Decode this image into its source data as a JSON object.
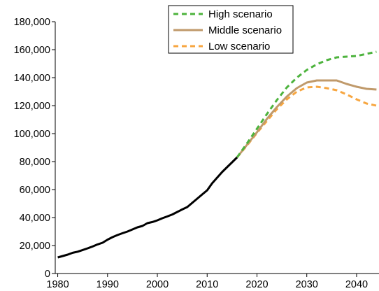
{
  "chart_data": {
    "type": "line",
    "title": "",
    "xlabel": "",
    "ylabel": "",
    "xlim": [
      1979.5,
      2044.5
    ],
    "ylim": [
      0,
      180000
    ],
    "x_ticks": [
      1980,
      1990,
      2000,
      2010,
      2020,
      2030,
      2040
    ],
    "x_tick_labels": [
      "1980",
      "1990",
      "2000",
      "2010",
      "2020",
      "2030",
      "2040"
    ],
    "y_ticks": [
      0,
      20000,
      40000,
      60000,
      80000,
      100000,
      120000,
      140000,
      160000,
      180000
    ],
    "y_tick_labels": [
      "0",
      "20,000",
      "40,000",
      "60,000",
      "80,000",
      "100,000",
      "120,000",
      "140,000",
      "160,000",
      "180,000"
    ],
    "grid": false,
    "legend_position": "top-center",
    "series": [
      {
        "name": "",
        "role": "historical",
        "color": "#000000",
        "style": "solid",
        "x": [
          1980,
          1981,
          1982,
          1983,
          1984,
          1985,
          1986,
          1987,
          1988,
          1989,
          1990,
          1991,
          1992,
          1993,
          1994,
          1995,
          1996,
          1997,
          1998,
          1999,
          2000,
          2001,
          2002,
          2003,
          2004,
          2005,
          2006,
          2007,
          2008,
          2009,
          2010,
          2011,
          2012,
          2013,
          2014,
          2015,
          2016
        ],
        "y": [
          11500,
          12500,
          13500,
          14800,
          15600,
          16800,
          18000,
          19300,
          20800,
          22000,
          24200,
          26000,
          27500,
          28800,
          30000,
          31500,
          33000,
          34000,
          36000,
          36800,
          38000,
          39500,
          40800,
          42200,
          44000,
          45800,
          47500,
          50500,
          53500,
          56500,
          59500,
          64500,
          68500,
          72500,
          76000,
          79500,
          83000
        ]
      },
      {
        "name": "High scenario",
        "role": "projection",
        "color": "#4db33d",
        "style": "dashed",
        "x": [
          2016,
          2018,
          2020,
          2022,
          2024,
          2026,
          2028,
          2030,
          2032,
          2034,
          2036,
          2038,
          2040,
          2042,
          2044
        ],
        "y": [
          83000,
          93000,
          103500,
          114000,
          124000,
          133000,
          140000,
          145500,
          149500,
          152500,
          154500,
          155000,
          155500,
          157000,
          158500
        ]
      },
      {
        "name": "Middle scenario",
        "role": "projection",
        "color": "#c09a6b",
        "style": "solid",
        "x": [
          2016,
          2018,
          2020,
          2022,
          2024,
          2026,
          2028,
          2030,
          2032,
          2034,
          2036,
          2038,
          2040,
          2042,
          2044
        ],
        "y": [
          83000,
          92000,
          101000,
          110500,
          119000,
          126500,
          132500,
          136500,
          138000,
          138000,
          138000,
          135500,
          133500,
          132000,
          131500
        ]
      },
      {
        "name": "Low scenario",
        "role": "projection",
        "color": "#f7a640",
        "style": "dashed",
        "x": [
          2016,
          2018,
          2020,
          2022,
          2024,
          2026,
          2028,
          2030,
          2032,
          2034,
          2036,
          2038,
          2040,
          2042,
          2044
        ],
        "y": [
          83000,
          91500,
          100500,
          109000,
          117500,
          124500,
          130000,
          133000,
          133500,
          132500,
          131000,
          128000,
          124500,
          121500,
          120000
        ]
      }
    ]
  }
}
